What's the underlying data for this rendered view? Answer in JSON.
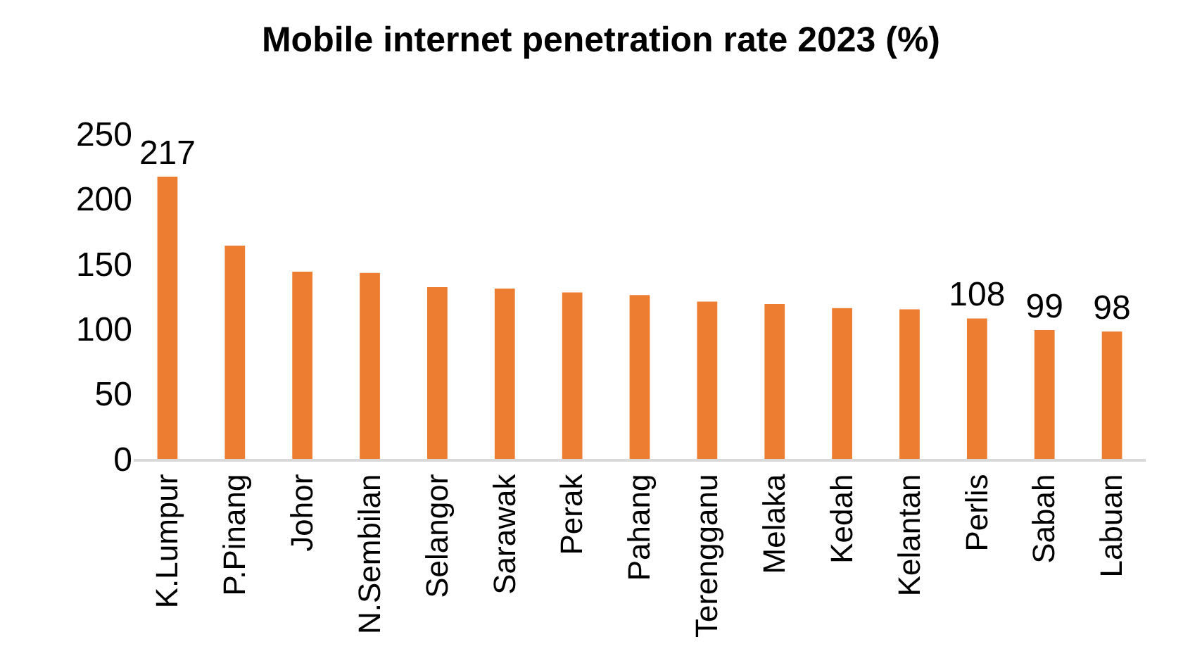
{
  "chart_data": {
    "type": "bar",
    "title": "Mobile internet penetration rate 2023 (%)",
    "categories": [
      "K.Lumpur",
      "P.Pinang",
      "Johor",
      "N.Sembilan",
      "Selangor",
      "Sarawak",
      "Perak",
      "Pahang",
      "Terengganu",
      "Melaka",
      "Kedah",
      "Kelantan",
      "Perlis",
      "Sabah",
      "Labuan"
    ],
    "values": [
      217,
      164,
      144,
      143,
      132,
      131,
      128,
      126,
      121,
      119,
      116,
      115,
      108,
      99,
      98
    ],
    "value_labels": [
      "217",
      null,
      null,
      null,
      null,
      null,
      null,
      null,
      null,
      null,
      null,
      null,
      "108",
      "99",
      "98"
    ],
    "color": "#ed7d31",
    "ylim": [
      0,
      250
    ],
    "yticks": [
      0,
      50,
      100,
      150,
      200,
      250
    ],
    "grid": false
  }
}
